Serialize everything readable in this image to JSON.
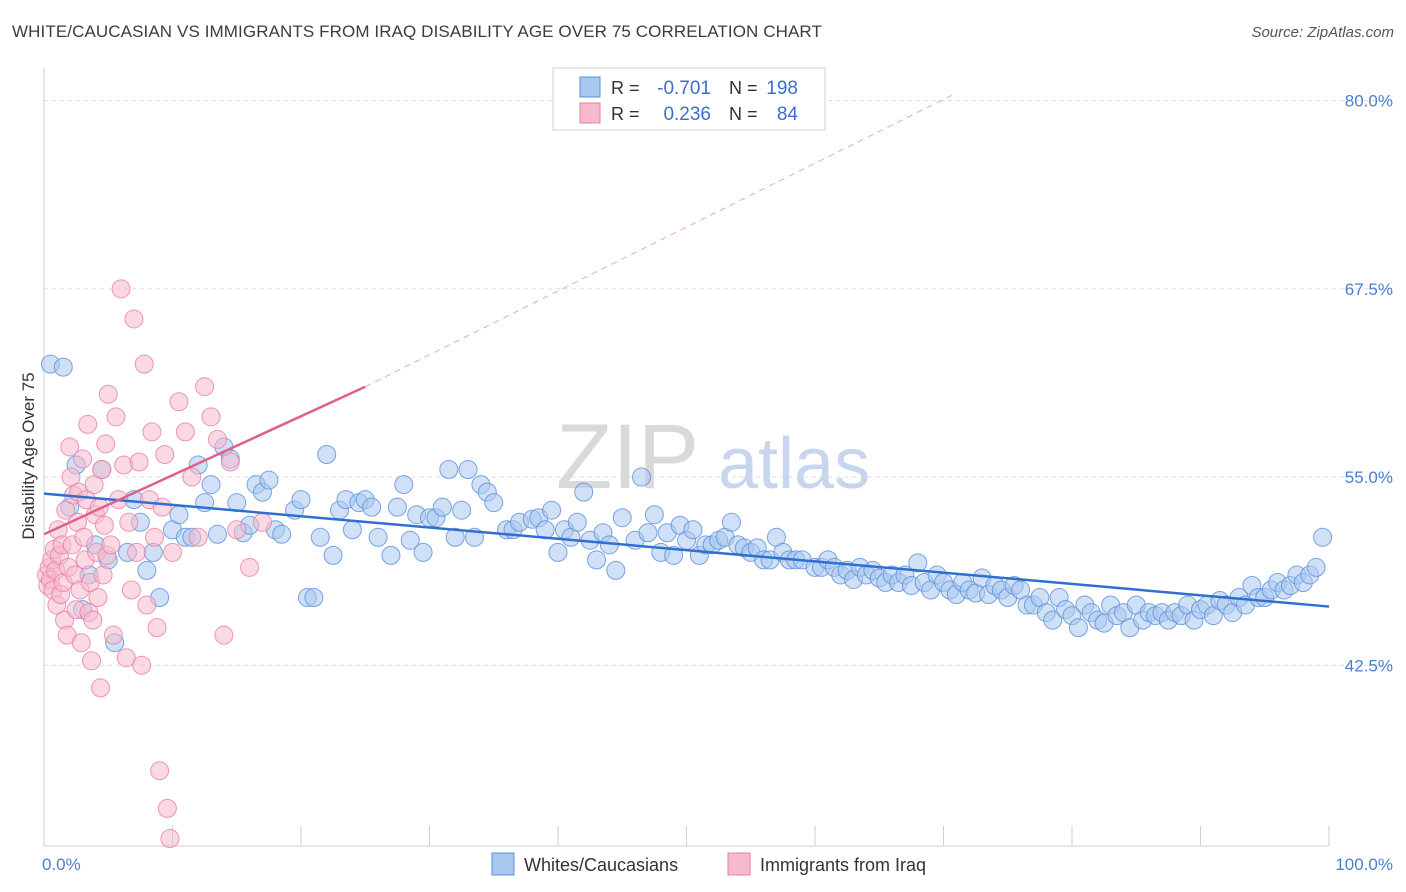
{
  "title": "WHITE/CAUCASIAN VS IMMIGRANTS FROM IRAQ DISABILITY AGE OVER 75 CORRELATION CHART",
  "source": "Source: ZipAtlas.com",
  "watermark": {
    "zip": "ZIP",
    "atlas": "atlas"
  },
  "legend_box": {
    "rows": [
      {
        "r_label": "R =",
        "r_value": "-0.701",
        "n_label": "N =",
        "n_value": "198"
      },
      {
        "r_label": "R =",
        "r_value": "0.236",
        "n_label": "N =",
        "n_value": "84"
      }
    ]
  },
  "colors": {
    "blue_fill": "#a9c8f0",
    "blue_stroke": "#5b8fd8",
    "blue_line": "#2f6fcf",
    "pink_fill": "#f6b9cd",
    "pink_stroke": "#e87fa0",
    "pink_line": "#e0608c",
    "grid": "#dcdcdc",
    "tick_text": "#4a7fd0"
  },
  "chart_data": {
    "type": "scatter",
    "ylabel": "Disability Age Over 75",
    "xlim": [
      0,
      100
    ],
    "ylim": [
      30.5,
      81.5
    ],
    "x_tick_labels": [
      {
        "value": 0,
        "label": "0.0%"
      },
      {
        "value": 100,
        "label": "100.0%"
      }
    ],
    "y_tick_labels": [
      {
        "value": 80.0,
        "label": "80.0%"
      },
      {
        "value": 67.5,
        "label": "67.5%"
      },
      {
        "value": 55.0,
        "label": "55.0%"
      },
      {
        "value": 42.5,
        "label": "42.5%"
      }
    ],
    "grid": true,
    "legend_position": "bottom-center",
    "series": [
      {
        "name": "Whites/Caucasians",
        "r": -0.701,
        "n": 198,
        "trend": {
          "x": [
            0,
            100
          ],
          "y": [
            53.9,
            46.4
          ]
        },
        "points": [
          [
            0.5,
            62.5
          ],
          [
            1.5,
            62.3
          ],
          [
            2,
            53
          ],
          [
            2.5,
            55.8
          ],
          [
            3,
            46.2
          ],
          [
            3.5,
            48.5
          ],
          [
            4,
            50.5
          ],
          [
            4.5,
            55.5
          ],
          [
            5,
            49.5
          ],
          [
            5.5,
            44
          ],
          [
            6.5,
            50
          ],
          [
            7,
            53.5
          ],
          [
            7.5,
            52
          ],
          [
            8,
            48.8
          ],
          [
            8.5,
            50
          ],
          [
            9,
            47
          ],
          [
            10,
            51.5
          ],
          [
            10.5,
            52.5
          ],
          [
            11,
            51
          ],
          [
            11.5,
            51
          ],
          [
            12,
            55.8
          ],
          [
            12.5,
            53.3
          ],
          [
            13,
            54.5
          ],
          [
            13.5,
            51.2
          ],
          [
            14,
            57
          ],
          [
            14.5,
            56.2
          ],
          [
            15,
            53.3
          ],
          [
            15.5,
            51.3
          ],
          [
            16,
            51.8
          ],
          [
            16.5,
            54.5
          ],
          [
            17,
            54
          ],
          [
            17.5,
            54.8
          ],
          [
            18,
            51.5
          ],
          [
            18.5,
            51.2
          ],
          [
            19.5,
            52.8
          ],
          [
            20,
            53.5
          ],
          [
            20.5,
            47
          ],
          [
            21,
            47
          ],
          [
            21.5,
            51
          ],
          [
            22,
            56.5
          ],
          [
            22.5,
            49.8
          ],
          [
            23,
            52.8
          ],
          [
            23.5,
            53.5
          ],
          [
            24,
            51.5
          ],
          [
            24.5,
            53.3
          ],
          [
            25,
            53.5
          ],
          [
            25.5,
            53
          ],
          [
            26,
            51
          ],
          [
            27,
            49.8
          ],
          [
            27.5,
            53
          ],
          [
            28,
            54.5
          ],
          [
            28.5,
            50.8
          ],
          [
            29,
            52.5
          ],
          [
            29.5,
            50
          ],
          [
            30,
            52.3
          ],
          [
            30.5,
            52.3
          ],
          [
            31,
            53
          ],
          [
            31.5,
            55.5
          ],
          [
            32,
            51
          ],
          [
            32.5,
            52.8
          ],
          [
            33,
            55.5
          ],
          [
            33.5,
            51
          ],
          [
            34,
            54.5
          ],
          [
            34.5,
            54
          ],
          [
            35,
            53.3
          ],
          [
            36,
            51.5
          ],
          [
            36.5,
            51.5
          ],
          [
            37,
            52
          ],
          [
            38,
            52.2
          ],
          [
            38.5,
            52.3
          ],
          [
            39,
            51.5
          ],
          [
            39.5,
            52.8
          ],
          [
            40,
            50
          ],
          [
            40.5,
            51.5
          ],
          [
            41,
            51
          ],
          [
            41.5,
            52
          ],
          [
            42,
            54
          ],
          [
            42.5,
            50.8
          ],
          [
            43,
            49.5
          ],
          [
            43.5,
            51.3
          ],
          [
            44,
            50.5
          ],
          [
            44.5,
            48.8
          ],
          [
            45,
            52.3
          ],
          [
            46,
            50.8
          ],
          [
            46.5,
            55
          ],
          [
            47,
            51.3
          ],
          [
            47.5,
            52.5
          ],
          [
            48,
            50
          ],
          [
            48.5,
            51.3
          ],
          [
            49,
            49.8
          ],
          [
            49.5,
            51.8
          ],
          [
            50,
            50.8
          ],
          [
            50.5,
            51.5
          ],
          [
            51,
            49.8
          ],
          [
            51.5,
            50.5
          ],
          [
            52,
            50.5
          ],
          [
            52.5,
            50.8
          ],
          [
            53,
            51
          ],
          [
            53.5,
            52
          ],
          [
            54,
            50.5
          ],
          [
            54.5,
            50.3
          ],
          [
            55,
            50
          ],
          [
            55.5,
            50.3
          ],
          [
            56,
            49.5
          ],
          [
            56.5,
            49.5
          ],
          [
            57,
            51
          ],
          [
            57.5,
            50
          ],
          [
            58,
            49.5
          ],
          [
            58.5,
            49.5
          ],
          [
            59,
            49.5
          ],
          [
            60,
            49
          ],
          [
            60.5,
            49
          ],
          [
            61,
            49.5
          ],
          [
            61.5,
            49
          ],
          [
            62,
            48.5
          ],
          [
            62.5,
            48.8
          ],
          [
            63,
            48.2
          ],
          [
            63.5,
            49
          ],
          [
            64,
            48.5
          ],
          [
            64.5,
            48.8
          ],
          [
            65,
            48.3
          ],
          [
            65.5,
            48
          ],
          [
            66,
            48.5
          ],
          [
            66.5,
            48
          ],
          [
            67,
            48.5
          ],
          [
            67.5,
            47.8
          ],
          [
            68,
            49.3
          ],
          [
            68.5,
            48
          ],
          [
            69,
            47.5
          ],
          [
            69.5,
            48.5
          ],
          [
            70,
            48
          ],
          [
            70.5,
            47.5
          ],
          [
            71,
            47.2
          ],
          [
            71.5,
            48
          ],
          [
            72,
            47.5
          ],
          [
            72.5,
            47.3
          ],
          [
            73,
            48.3
          ],
          [
            73.5,
            47.2
          ],
          [
            74,
            47.8
          ],
          [
            74.5,
            47.5
          ],
          [
            75,
            47
          ],
          [
            75.5,
            47.8
          ],
          [
            76,
            47.5
          ],
          [
            76.5,
            46.5
          ],
          [
            77,
            46.5
          ],
          [
            77.5,
            47
          ],
          [
            78,
            46
          ],
          [
            78.5,
            45.5
          ],
          [
            79,
            47
          ],
          [
            79.5,
            46.2
          ],
          [
            80,
            45.8
          ],
          [
            80.5,
            45
          ],
          [
            81,
            46.5
          ],
          [
            81.5,
            46
          ],
          [
            82,
            45.5
          ],
          [
            82.5,
            45.3
          ],
          [
            83,
            46.5
          ],
          [
            83.5,
            45.8
          ],
          [
            84,
            46
          ],
          [
            84.5,
            45
          ],
          [
            85,
            46.5
          ],
          [
            85.5,
            45.5
          ],
          [
            86,
            46
          ],
          [
            86.5,
            45.8
          ],
          [
            87,
            46
          ],
          [
            87.5,
            45.5
          ],
          [
            88,
            46
          ],
          [
            88.5,
            45.8
          ],
          [
            89,
            46.5
          ],
          [
            89.5,
            45.5
          ],
          [
            90,
            46.2
          ],
          [
            90.5,
            46.5
          ],
          [
            91,
            45.8
          ],
          [
            91.5,
            46.8
          ],
          [
            92,
            46.5
          ],
          [
            92.5,
            46
          ],
          [
            93,
            47
          ],
          [
            93.5,
            46.5
          ],
          [
            94,
            47.8
          ],
          [
            94.5,
            47
          ],
          [
            95,
            47
          ],
          [
            95.5,
            47.5
          ],
          [
            96,
            48
          ],
          [
            96.5,
            47.5
          ],
          [
            97,
            47.8
          ],
          [
            97.5,
            48.5
          ],
          [
            98,
            48
          ],
          [
            98.5,
            48.5
          ],
          [
            99,
            49
          ],
          [
            99.5,
            51
          ]
        ]
      },
      {
        "name": "Immigrants from Iraq",
        "r": 0.236,
        "n": 84,
        "trend": {
          "x": [
            0,
            25
          ],
          "y": [
            51.2,
            61.0
          ]
        },
        "trend_extension": {
          "x": [
            25,
            71
          ],
          "y": [
            61.0,
            80.5
          ]
        },
        "points": [
          [
            0.2,
            48.5
          ],
          [
            0.3,
            47.8
          ],
          [
            0.4,
            49
          ],
          [
            0.5,
            48.2
          ],
          [
            0.6,
            49.5
          ],
          [
            0.7,
            47.5
          ],
          [
            0.8,
            50.2
          ],
          [
            0.9,
            48.8
          ],
          [
            1,
            46.5
          ],
          [
            1.1,
            51.5
          ],
          [
            1.2,
            49.8
          ],
          [
            1.3,
            47.2
          ],
          [
            1.4,
            50.5
          ],
          [
            1.5,
            48
          ],
          [
            1.6,
            45.5
          ],
          [
            1.7,
            52.8
          ],
          [
            1.8,
            44.5
          ],
          [
            1.9,
            49
          ],
          [
            2,
            57
          ],
          [
            2.1,
            55
          ],
          [
            2.2,
            50.5
          ],
          [
            2.3,
            53.8
          ],
          [
            2.4,
            48.5
          ],
          [
            2.5,
            46.2
          ],
          [
            2.6,
            52
          ],
          [
            2.7,
            54
          ],
          [
            2.8,
            47.5
          ],
          [
            2.9,
            44
          ],
          [
            3,
            56.2
          ],
          [
            3.1,
            51
          ],
          [
            3.2,
            49.5
          ],
          [
            3.3,
            53.5
          ],
          [
            3.4,
            58.5
          ],
          [
            3.5,
            46
          ],
          [
            3.6,
            48
          ],
          [
            3.7,
            42.8
          ],
          [
            3.8,
            45.5
          ],
          [
            3.9,
            54.5
          ],
          [
            4,
            52.5
          ],
          [
            4.1,
            50
          ],
          [
            4.2,
            47
          ],
          [
            4.3,
            53
          ],
          [
            4.4,
            41
          ],
          [
            4.5,
            55.5
          ],
          [
            4.6,
            48.5
          ],
          [
            4.7,
            51.8
          ],
          [
            4.8,
            57.2
          ],
          [
            4.9,
            49.8
          ],
          [
            5,
            60.5
          ],
          [
            5.2,
            50.5
          ],
          [
            5.4,
            44.5
          ],
          [
            5.6,
            59
          ],
          [
            5.8,
            53.5
          ],
          [
            6,
            67.5
          ],
          [
            6.2,
            55.8
          ],
          [
            6.4,
            43
          ],
          [
            6.6,
            52
          ],
          [
            6.8,
            47.5
          ],
          [
            7,
            65.5
          ],
          [
            7.2,
            50
          ],
          [
            7.4,
            56
          ],
          [
            7.6,
            42.5
          ],
          [
            7.8,
            62.5
          ],
          [
            8,
            46.5
          ],
          [
            8.2,
            53.5
          ],
          [
            8.4,
            58
          ],
          [
            8.6,
            51
          ],
          [
            8.8,
            45
          ],
          [
            9,
            35.5
          ],
          [
            9.2,
            53
          ],
          [
            9.4,
            56.5
          ],
          [
            9.6,
            33
          ],
          [
            9.8,
            31
          ],
          [
            10,
            50
          ],
          [
            10.5,
            60
          ],
          [
            11,
            58
          ],
          [
            11.5,
            55
          ],
          [
            12,
            51
          ],
          [
            12.5,
            61
          ],
          [
            13,
            59
          ],
          [
            13.5,
            57.5
          ],
          [
            14,
            44.5
          ],
          [
            14.5,
            56
          ],
          [
            15,
            51.5
          ],
          [
            16,
            49
          ],
          [
            17,
            52
          ]
        ]
      }
    ]
  }
}
